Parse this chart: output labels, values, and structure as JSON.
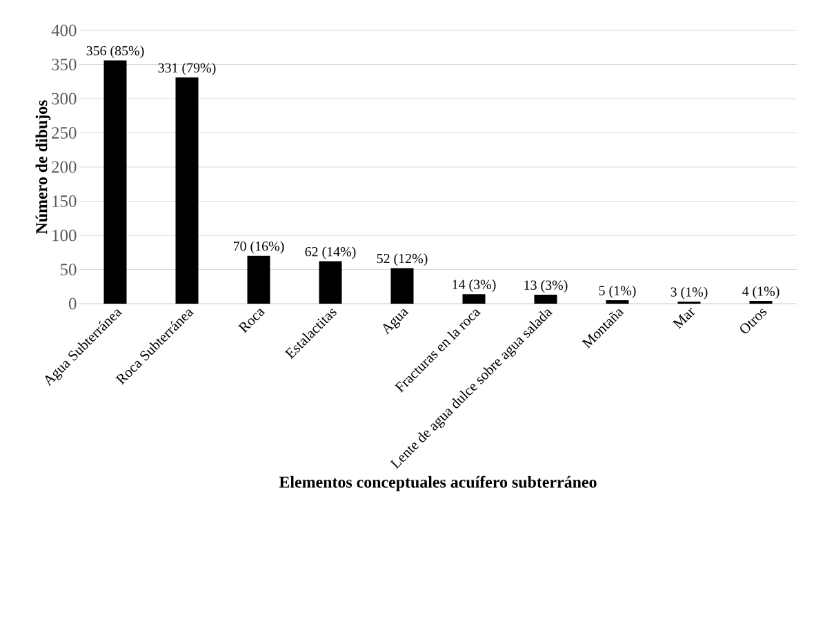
{
  "chart_data": {
    "type": "bar",
    "xlabel": "Elementos conceptuales acuífero subterráneo",
    "ylabel": "Número de dibujos",
    "categories": [
      "Agua Subterránea",
      "Roca Subterránea",
      "Roca",
      "Estalactitas",
      "Agua",
      "Fracturas en la roca",
      "Lente de agua dulce sobre agua salada",
      "Montaña",
      "Mar",
      "Otros"
    ],
    "values": [
      356,
      331,
      70,
      62,
      52,
      14,
      13,
      5,
      3,
      4
    ],
    "value_labels": [
      "356  (85%)",
      "331 (79%)",
      "70 (16%)",
      "62 (14%)",
      "52 (12%)",
      "14 (3%)",
      "13 (3%)",
      "5 (1%)",
      "3 (1%)",
      "4 (1%)"
    ],
    "color": "#000000",
    "ylim": [
      0,
      400
    ],
    "yticks": [
      0,
      50,
      100,
      150,
      200,
      250,
      300,
      350,
      400
    ],
    "grid": "y"
  }
}
